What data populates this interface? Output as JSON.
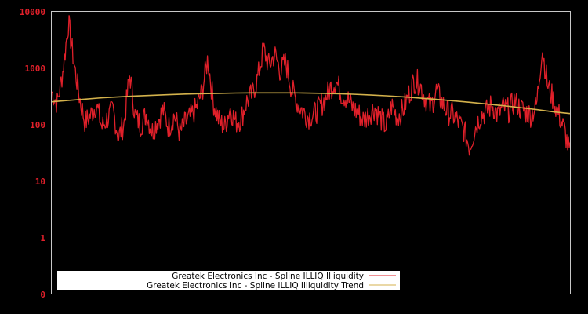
{
  "chart_data": {
    "type": "line",
    "title": "",
    "xlabel": "",
    "ylabel": "",
    "yscale": "log",
    "ylim": [
      0.1,
      10000
    ],
    "ytick_labels": [
      "10000",
      "1000",
      "100",
      "10",
      "1",
      "0"
    ],
    "ytick_values": [
      10000,
      1000,
      100,
      10,
      1,
      0.1
    ],
    "grid": false,
    "legend_position": "lower-left",
    "series": [
      {
        "name": "Greatek Electronics Inc - Spline ILLIQ Illiquidity",
        "color": "#e0202a",
        "values": [
          380,
          240,
          900,
          6500,
          1200,
          300,
          110,
          150,
          230,
          90,
          130,
          180,
          60,
          110,
          800,
          140,
          100,
          160,
          75,
          120,
          180,
          90,
          150,
          70,
          110,
          140,
          200,
          400,
          1500,
          250,
          120,
          90,
          200,
          110,
          130,
          260,
          350,
          700,
          2200,
          1100,
          1800,
          900,
          1300,
          450,
          250,
          180,
          140,
          150,
          200,
          280,
          450,
          600,
          350,
          300,
          200,
          160,
          120,
          160,
          200,
          130,
          90,
          220,
          140,
          180,
          330,
          600,
          550,
          300,
          200,
          400,
          250,
          170,
          150,
          110,
          80,
          40,
          90,
          150,
          170,
          230,
          150,
          200,
          180,
          260,
          200,
          170,
          150,
          220,
          2300,
          500,
          280,
          150,
          80,
          30
        ]
      },
      {
        "name": "Greatek Electronics Inc - Spline ILLIQ Illiquidity Trend",
        "color": "#d4b24c",
        "values": [
          255,
          270,
          285,
          300,
          312,
          323,
          333,
          342,
          350,
          356,
          361,
          365,
          367,
          368,
          368,
          366,
          362,
          356,
          348,
          338,
          326,
          313,
          298,
          282,
          266,
          250,
          234,
          218,
          202,
          186,
          170,
          158
        ]
      }
    ]
  },
  "legend": {
    "items": [
      {
        "label": "Greatek Electronics Inc - Spline ILLIQ Illiquidity",
        "color": "#e0202a"
      },
      {
        "label": "Greatek Electronics Inc - Spline ILLIQ Illiquidity Trend",
        "color": "#d4b24c"
      }
    ]
  },
  "style": {
    "background": "#000000",
    "axis_color": "#c8c8c8",
    "tick_label_color": "#e0202a",
    "legend_bg": "#ffffff"
  }
}
